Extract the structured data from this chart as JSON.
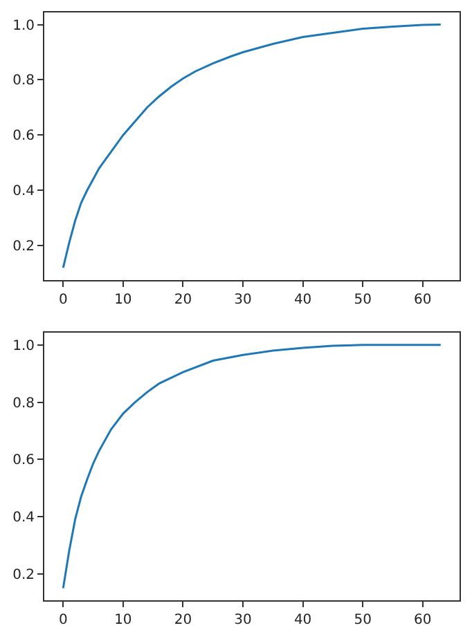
{
  "chart_data": [
    {
      "type": "line",
      "x": [
        0,
        1,
        2,
        3,
        4,
        5,
        6,
        8,
        10,
        12,
        14,
        16,
        18,
        20,
        22,
        25,
        28,
        30,
        35,
        40,
        45,
        50,
        55,
        60,
        63
      ],
      "series": [
        {
          "color": "#1f77b4",
          "values": [
            0.12,
            0.21,
            0.29,
            0.355,
            0.4,
            0.44,
            0.48,
            0.54,
            0.6,
            0.65,
            0.7,
            0.74,
            0.775,
            0.805,
            0.83,
            0.86,
            0.885,
            0.9,
            0.93,
            0.955,
            0.97,
            0.985,
            0.993,
            0.999,
            1.0
          ]
        }
      ],
      "xlim": [
        -3.15,
        66.15
      ],
      "xticks": [
        0,
        10,
        20,
        30,
        40,
        50,
        60
      ],
      "ylim": [
        0.076,
        1.044
      ],
      "yticks": [
        {
          "value": 0.2,
          "label": "0.2"
        },
        {
          "value": 0.4,
          "label": "0.4"
        },
        {
          "value": 0.6,
          "label": "0.6"
        },
        {
          "value": 0.8,
          "label": "0.8"
        },
        {
          "value": 1.0,
          "label": "1.0"
        }
      ]
    },
    {
      "type": "line",
      "x": [
        0,
        1,
        2,
        3,
        4,
        5,
        6,
        8,
        10,
        12,
        14,
        16,
        18,
        20,
        25,
        30,
        35,
        40,
        45,
        50,
        55,
        63
      ],
      "series": [
        {
          "color": "#1f77b4",
          "values": [
            0.15,
            0.28,
            0.39,
            0.47,
            0.53,
            0.585,
            0.63,
            0.705,
            0.76,
            0.8,
            0.835,
            0.865,
            0.885,
            0.905,
            0.945,
            0.965,
            0.98,
            0.99,
            0.997,
            1.0,
            1.0,
            1.0
          ]
        }
      ],
      "xlim": [
        -3.15,
        66.15
      ],
      "xticks": [
        0,
        10,
        20,
        30,
        40,
        50,
        60
      ],
      "ylim": [
        0.1075,
        1.0425
      ],
      "yticks": [
        {
          "value": 0.2,
          "label": "0.2"
        },
        {
          "value": 0.4,
          "label": "0.4"
        },
        {
          "value": 0.6,
          "label": "0.6"
        },
        {
          "value": 0.8,
          "label": "0.8"
        },
        {
          "value": 1.0,
          "label": "1.0"
        }
      ]
    }
  ]
}
